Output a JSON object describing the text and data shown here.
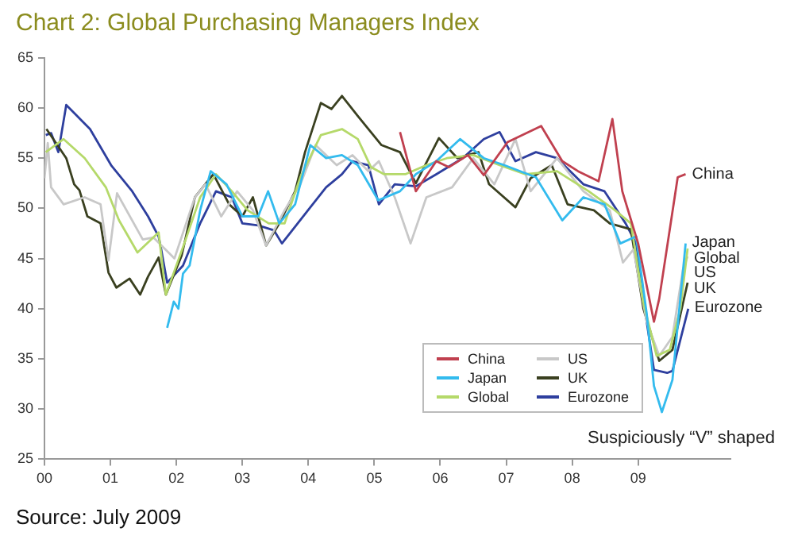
{
  "chart_data": {
    "type": "line",
    "title": "Chart 2: Global Purchasing Managers Index",
    "xlim": [
      2000,
      2010.4
    ],
    "xticks": [
      {
        "value": 2000,
        "label": "00"
      },
      {
        "value": 2001,
        "label": "01"
      },
      {
        "value": 2002,
        "label": "02"
      },
      {
        "value": 2003,
        "label": "03"
      },
      {
        "value": 2004,
        "label": "04"
      },
      {
        "value": 2005,
        "label": "05"
      },
      {
        "value": 2006,
        "label": "06"
      },
      {
        "value": 2007,
        "label": "07"
      },
      {
        "value": 2008,
        "label": "08"
      },
      {
        "value": 2009,
        "label": "09"
      }
    ],
    "ylim": [
      25,
      65
    ],
    "yticks": [
      25,
      30,
      35,
      40,
      45,
      50,
      55,
      60,
      65
    ],
    "legend": "bottom right",
    "marker": "none",
    "line_style": "solid",
    "series": [
      {
        "name": "China",
        "color": "#c0404f",
        "x": [
          2005.39,
          2005.63,
          2005.94,
          2006.13,
          2006.42,
          2006.66,
          2007.02,
          2007.53,
          2007.85,
          2008.09,
          2008.4,
          2008.61,
          2008.76,
          2009.0,
          2009.24,
          2009.32,
          2009.6,
          2009.72
        ],
        "values": [
          57.6,
          51.7,
          54.7,
          54.1,
          55.3,
          53.3,
          56.6,
          58.2,
          54.7,
          53.7,
          52.7,
          58.9,
          51.7,
          46.5,
          38.7,
          41,
          53.1,
          53.4
        ]
      },
      {
        "name": "Japan",
        "color": "#33bbee",
        "x": [
          2001.86,
          2001.96,
          2002.03,
          2002.1,
          2002.2,
          2002.36,
          2002.52,
          2002.76,
          2003.0,
          2003.24,
          2003.39,
          2003.56,
          2003.8,
          2004.03,
          2004.27,
          2004.51,
          2004.75,
          2005.06,
          2005.39,
          2005.63,
          2005.94,
          2006.3,
          2006.66,
          2006.97,
          2007.45,
          2007.85,
          2008.17,
          2008.49,
          2008.73,
          2008.97,
          2009.13,
          2009.24,
          2009.36,
          2009.52,
          2009.72
        ],
        "values": [
          38.1,
          40.7,
          40,
          43.5,
          44.3,
          49.8,
          53.7,
          52.4,
          49.2,
          49.2,
          51.7,
          48.5,
          50.4,
          56.3,
          55,
          55.3,
          54.3,
          50.8,
          51.7,
          53.4,
          54.7,
          56.9,
          55,
          54.3,
          53.1,
          48.8,
          51.1,
          50.4,
          46.5,
          47.2,
          39.5,
          32.3,
          29.7,
          32.9,
          46.5
        ]
      },
      {
        "name": "Global",
        "color": "#b5d96a",
        "x": [
          2000.02,
          2000.29,
          2000.61,
          2000.93,
          2001.13,
          2001.41,
          2001.73,
          2001.84,
          2002.12,
          2002.36,
          2002.6,
          2002.84,
          2003.08,
          2003.4,
          2003.64,
          2003.88,
          2004.19,
          2004.51,
          2004.75,
          2004.95,
          2005.15,
          2005.47,
          2005.79,
          2006.1,
          2006.5,
          2006.9,
          2007.29,
          2007.77,
          2008.25,
          2008.65,
          2008.89,
          2009.08,
          2009.28,
          2009.48,
          2009.64,
          2009.75
        ],
        "values": [
          55.6,
          56.9,
          55,
          52.1,
          48.8,
          45.6,
          47.6,
          41.4,
          46.5,
          51.1,
          53.4,
          51.7,
          49.8,
          48.5,
          48.5,
          53.1,
          57.3,
          57.9,
          56.9,
          54.1,
          53.4,
          53.4,
          54.3,
          55,
          55.3,
          54.3,
          53.4,
          53.7,
          51.7,
          49.8,
          48.5,
          40.6,
          35.3,
          35.9,
          40,
          46
        ]
      },
      {
        "name": "US",
        "color": "#c8c8c8",
        "x": [
          2000.0,
          2000.05,
          2000.1,
          2000.29,
          2000.61,
          2000.85,
          2000.97,
          2001.1,
          2001.49,
          2001.65,
          2001.97,
          2002.28,
          2002.44,
          2002.68,
          2002.92,
          2003.16,
          2003.36,
          2003.64,
          2003.88,
          2004.11,
          2004.43,
          2004.67,
          2004.91,
          2005.07,
          2005.31,
          2005.55,
          2005.79,
          2006.18,
          2006.5,
          2006.82,
          2007.14,
          2007.37,
          2007.77,
          2008.17,
          2008.57,
          2008.77,
          2008.93,
          2009.13,
          2009.32,
          2009.52,
          2009.68,
          2009.75
        ],
        "values": [
          53,
          56.5,
          52.1,
          50.4,
          51.1,
          50.4,
          44.8,
          51.5,
          46.9,
          47.1,
          45,
          51.1,
          52.4,
          49.2,
          51.7,
          49.8,
          46.3,
          49.8,
          52.4,
          56.3,
          54.3,
          55.3,
          53.7,
          54.7,
          51.1,
          46.5,
          51.1,
          52.1,
          55,
          52.4,
          56.9,
          51.7,
          55,
          51.7,
          49.8,
          44.6,
          45.9,
          38.7,
          35.3,
          37.2,
          43.9,
          45.2
        ]
      },
      {
        "name": "UK",
        "color": "#3a4020",
        "x": [
          2000.03,
          2000.33,
          2000.45,
          2000.53,
          2000.65,
          2000.85,
          2000.97,
          2001.09,
          2001.29,
          2001.45,
          2001.57,
          2001.73,
          2001.84,
          2002.08,
          2002.28,
          2002.56,
          2002.8,
          2003.0,
          2003.16,
          2003.36,
          2003.56,
          2003.8,
          2003.95,
          2004.19,
          2004.35,
          2004.51,
          2004.75,
          2005.11,
          2005.39,
          2005.63,
          2005.98,
          2006.26,
          2006.58,
          2006.74,
          2007.14,
          2007.37,
          2007.69,
          2007.93,
          2008.33,
          2008.57,
          2008.89,
          2009.08,
          2009.32,
          2009.52,
          2009.75
        ],
        "values": [
          57.9,
          55,
          52.4,
          51.8,
          49.2,
          48.5,
          43.6,
          42.1,
          43,
          41.4,
          43.2,
          45.1,
          41.4,
          45.3,
          51.1,
          53.4,
          50.4,
          49.2,
          51.1,
          46.3,
          48.5,
          51.7,
          55.6,
          60.5,
          59.9,
          61.2,
          59.2,
          56.3,
          55.6,
          52.5,
          57,
          55,
          55.6,
          52.4,
          50.1,
          53,
          54.3,
          50.4,
          49.8,
          48.5,
          47.9,
          40,
          34.8,
          35.9,
          42.6
        ]
      },
      {
        "name": "Eurozone",
        "color": "#2e3f9e",
        "x": [
          2000.02,
          2000.1,
          2000.21,
          2000.33,
          2000.69,
          2001.01,
          2001.33,
          2001.57,
          2001.73,
          2001.77,
          2001.86,
          2002.1,
          2002.36,
          2002.6,
          2002.84,
          2003.0,
          2003.24,
          2003.48,
          2003.6,
          2004.03,
          2004.27,
          2004.51,
          2004.67,
          2004.91,
          2005.07,
          2005.31,
          2005.63,
          2005.94,
          2006.34,
          2006.66,
          2006.9,
          2007.14,
          2007.45,
          2007.77,
          2008.17,
          2008.49,
          2008.81,
          2008.97,
          2009.13,
          2009.24,
          2009.44,
          2009.52,
          2009.76
        ],
        "values": [
          57.3,
          57.5,
          55.6,
          60.3,
          57.9,
          54.3,
          51.7,
          49.2,
          47.2,
          45.9,
          42.6,
          44.3,
          48.5,
          51.7,
          51.1,
          48.5,
          48.3,
          47.8,
          46.5,
          50.1,
          52.1,
          53.4,
          54.7,
          54.3,
          50.4,
          52.4,
          52.2,
          53.4,
          55,
          56.9,
          57.6,
          54.7,
          55.6,
          55,
          52.4,
          51.7,
          48.5,
          46.5,
          38.7,
          33.9,
          33.6,
          33.8,
          40
        ]
      }
    ],
    "annotations": [
      "Suspiciously “V” shaped",
      "Source: July 2009"
    ]
  }
}
